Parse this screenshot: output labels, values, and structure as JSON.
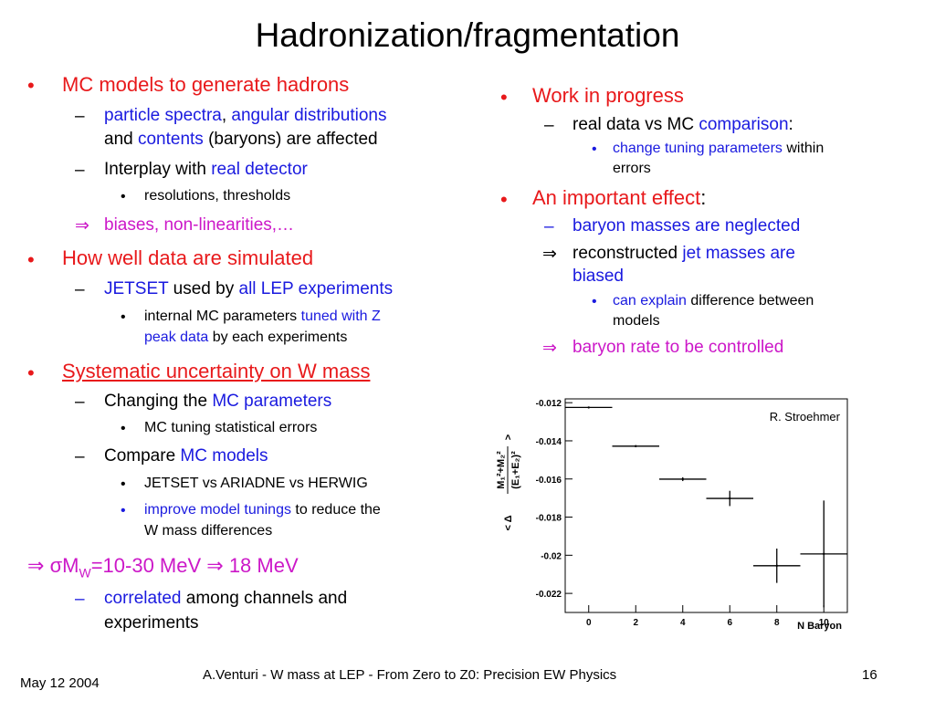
{
  "slide": {
    "title": "Hadronization/fragmentation",
    "left": {
      "b1": "MC models to generate hadrons",
      "b1a_p1": "particle spectra",
      "b1a_p2": ", ",
      "b1a_p3": "angular distributions",
      "b1a_l2_p1": "and ",
      "b1a_l2_p2": "contents",
      "b1a_l2_p3": " (baryons) are affected",
      "b1b_p1": "Interplay with ",
      "b1b_p2": "real detector",
      "b1b_sub": "resolutions, thresholds",
      "b1c": "biases, non-linearities,…",
      "b2": "How well data are simulated",
      "b2a_p1": "JETSET",
      "b2a_p2": " used by ",
      "b2a_p3": "all LEP experiments",
      "b2a_sub_p1": "internal MC parameters ",
      "b2a_sub_p2": "tuned with Z",
      "b2a_sub_l2_p1": "peak data",
      "b2a_sub_l2_p2": " by each experiments",
      "b3": "Systematic uncertainty on W mass",
      "b3a_p1": "Changing the ",
      "b3a_p2": "MC parameters",
      "b3a_sub": "MC tuning statistical errors",
      "b3b_p1": "Compare ",
      "b3b_p2": "MC models",
      "b3b_sub1": "JETSET vs ARIADNE vs HERWIG",
      "b3b_sub2_p1": "improve model tunings",
      "b3b_sub2_p2": " to reduce the",
      "b3b_sub2_l2": "W mass differences",
      "b4_sigma": "σ",
      "b4_M": "M",
      "b4_W": "W",
      "b4_val": "=10-30 MeV ",
      "b4_res": " 18 MeV",
      "b4a_p1": "correlated",
      "b4a_p2": " among channels and",
      "b4a_l2": "experiments"
    },
    "right": {
      "r1": "Work in progress",
      "r1a_p1": "real data vs MC ",
      "r1a_p2": "comparison",
      "r1a_p3": ":",
      "r1a_sub_p1": "change tuning parameters",
      "r1a_sub_p2": " within",
      "r1a_sub_l2": "errors",
      "r2_p1": "An important effect",
      "r2_p2": ":",
      "r2a": "baryon masses are neglected",
      "r2b_p1": "reconstructed ",
      "r2b_p2": "jet masses are",
      "r2b_l2": "biased",
      "r2b_sub_p1": "can explain",
      "r2b_sub_p2": " difference between",
      "r2b_sub_l2": "models",
      "r2c": "baryon rate to be controlled"
    },
    "symbols": {
      "bullet": "•",
      "dash": "–",
      "implies": "⇒"
    },
    "footer": {
      "date": "May 12 2004",
      "center": "A.Venturi - W mass at LEP - From Zero to Z0: Precision EW Physics",
      "page": "16"
    }
  },
  "chart_data": {
    "type": "scatter",
    "annotation": "R. Stroehmer",
    "xlabel": "N Baryon",
    "ylabel_sym": "< Δ",
    "ylabel_num": "M₁²+M₂²",
    "ylabel_den": "(E₁+E₂)²",
    "ylabel_close": ">",
    "xlim": [
      -1,
      11
    ],
    "ylim": [
      -0.023,
      -0.0118
    ],
    "xticks": [
      0,
      2,
      4,
      6,
      8,
      10
    ],
    "xtick_labels": [
      "0",
      "2",
      "4",
      "6",
      "8",
      "10"
    ],
    "yticks": [
      -0.012,
      -0.014,
      -0.016,
      -0.018,
      -0.02,
      -0.022
    ],
    "ytick_labels": [
      "-0.012",
      "-0.014",
      "-0.016",
      "-0.018",
      "-0.02",
      "-0.022"
    ],
    "points": [
      {
        "x": 0,
        "y": -0.01225,
        "xerr": 1,
        "yerr": 3e-05
      },
      {
        "x": 2,
        "y": -0.01428,
        "xerr": 1,
        "yerr": 5e-05
      },
      {
        "x": 4,
        "y": -0.01601,
        "xerr": 1,
        "yerr": 0.0001
      },
      {
        "x": 6,
        "y": -0.01702,
        "xerr": 1,
        "yerr": 0.0004
      },
      {
        "x": 8,
        "y": -0.02055,
        "xerr": 1,
        "yerr": 0.0009
      },
      {
        "x": 10,
        "y": -0.01993,
        "xerr": 1,
        "yerr": 0.0028
      }
    ]
  }
}
